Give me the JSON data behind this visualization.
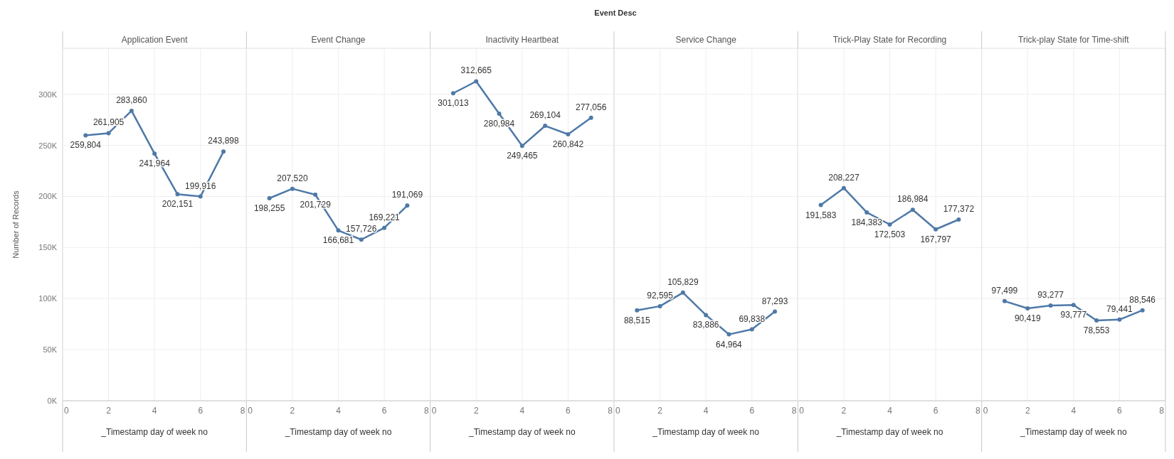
{
  "chart_data": [
    {
      "type": "line",
      "title": "Application Event",
      "annotations": [
        "Event Desc"
      ],
      "xlabel": "_Timestamp day of week no",
      "ylabel": "Number of Records",
      "x": [
        1,
        2,
        3,
        4,
        5,
        6,
        7
      ],
      "series": [
        {
          "color": "#4e79a7",
          "values": [
            259804,
            261905,
            283860,
            241964,
            202151,
            199916,
            243898
          ],
          "value_labels": [
            "259,804",
            "261,905",
            "283,860",
            "241,964",
            "202,151",
            "199,916",
            "243,898"
          ]
        }
      ],
      "xlim": [
        0,
        8
      ],
      "xticks": [
        0,
        2,
        4,
        6,
        8
      ],
      "ylim": [
        0,
        345000
      ],
      "yticks": [
        {
          "value": 0,
          "label": "0K"
        },
        {
          "value": 50000,
          "label": "50K"
        },
        {
          "value": 100000,
          "label": "100K"
        },
        {
          "value": 150000,
          "label": "150K"
        },
        {
          "value": 200000,
          "label": "200K"
        },
        {
          "value": 250000,
          "label": "250K"
        },
        {
          "value": 300000,
          "label": "300K"
        }
      ],
      "grid": true,
      "marker": "circle"
    },
    {
      "type": "line",
      "title": "Event Change",
      "xlabel": "_Timestamp day of week no",
      "x": [
        1,
        2,
        3,
        4,
        5,
        6,
        7
      ],
      "series": [
        {
          "color": "#4e79a7",
          "values": [
            198255,
            207520,
            201729,
            166681,
            157726,
            169221,
            191069
          ],
          "value_labels": [
            "198,255",
            "207,520",
            "201,729",
            "166,681",
            "157,726",
            "169,221",
            "191,069"
          ]
        }
      ],
      "xlim": [
        0,
        8
      ],
      "xticks": [
        0,
        2,
        4,
        6,
        8
      ],
      "ylim": [
        0,
        345000
      ],
      "yticks": [
        0,
        50000,
        100000,
        150000,
        200000,
        250000,
        300000
      ],
      "grid": true,
      "marker": "circle",
      "tick_labels": "x"
    },
    {
      "type": "line",
      "title": "Inactivity Heartbeat",
      "xlabel": "_Timestamp day of week no",
      "x": [
        1,
        2,
        3,
        4,
        5,
        6,
        7
      ],
      "series": [
        {
          "color": "#4e79a7",
          "values": [
            301013,
            312665,
            280984,
            249465,
            269104,
            260842,
            277056
          ],
          "value_labels": [
            "301,013",
            "312,665",
            "280,984",
            "249,465",
            "269,104",
            "260,842",
            "277,056"
          ]
        }
      ],
      "xlim": [
        0,
        8
      ],
      "xticks": [
        0,
        2,
        4,
        6,
        8
      ],
      "ylim": [
        0,
        345000
      ],
      "yticks": [
        0,
        50000,
        100000,
        150000,
        200000,
        250000,
        300000
      ],
      "grid": true,
      "marker": "circle",
      "tick_labels": "x"
    },
    {
      "type": "line",
      "title": "Service Change",
      "xlabel": "_Timestamp day of week no",
      "x": [
        1,
        2,
        3,
        4,
        5,
        6,
        7
      ],
      "series": [
        {
          "color": "#4e79a7",
          "values": [
            88515,
            92595,
            105829,
            83886,
            64964,
            69838,
            87293
          ],
          "value_labels": [
            "88,515",
            "92,595",
            "105,829",
            "83,886",
            "64,964",
            "69,838",
            "87,293"
          ]
        }
      ],
      "xlim": [
        0,
        8
      ],
      "xticks": [
        0,
        2,
        4,
        6,
        8
      ],
      "ylim": [
        0,
        345000
      ],
      "yticks": [
        0,
        50000,
        100000,
        150000,
        200000,
        250000,
        300000
      ],
      "grid": true,
      "marker": "circle",
      "tick_labels": "x"
    },
    {
      "type": "line",
      "title": "Trick-Play State for Recording",
      "xlabel": "_Timestamp day of week no",
      "x": [
        1,
        2,
        3,
        4,
        5,
        6,
        7
      ],
      "series": [
        {
          "color": "#4e79a7",
          "values": [
            191583,
            208227,
            184383,
            172503,
            186984,
            167797,
            177372
          ],
          "value_labels": [
            "191,583",
            "208,227",
            "184,383",
            "172,503",
            "186,984",
            "167,797",
            "177,372"
          ]
        }
      ],
      "xlim": [
        0,
        8
      ],
      "xticks": [
        0,
        2,
        4,
        6,
        8
      ],
      "ylim": [
        0,
        345000
      ],
      "yticks": [
        0,
        50000,
        100000,
        150000,
        200000,
        250000,
        300000
      ],
      "grid": true,
      "marker": "circle",
      "tick_labels": "x"
    },
    {
      "type": "line",
      "title": "Trick-play State for Time-shift",
      "xlabel": "_Timestamp day of week no",
      "x": [
        1,
        2,
        3,
        4,
        5,
        6,
        7
      ],
      "series": [
        {
          "color": "#4e79a7",
          "values": [
            97499,
            90419,
            93277,
            93777,
            78553,
            79441,
            88546
          ],
          "value_labels": [
            "97,499",
            "90,419",
            "93,277",
            "93,777",
            "78,553",
            "79,441",
            "88,546"
          ]
        }
      ],
      "xlim": [
        0,
        8
      ],
      "xticks": [
        0,
        2,
        4,
        6,
        8
      ],
      "ylim": [
        0,
        345000
      ],
      "yticks": [
        0,
        50000,
        100000,
        150000,
        200000,
        250000,
        300000
      ],
      "grid": true,
      "marker": "circle",
      "tick_labels": "x"
    }
  ]
}
